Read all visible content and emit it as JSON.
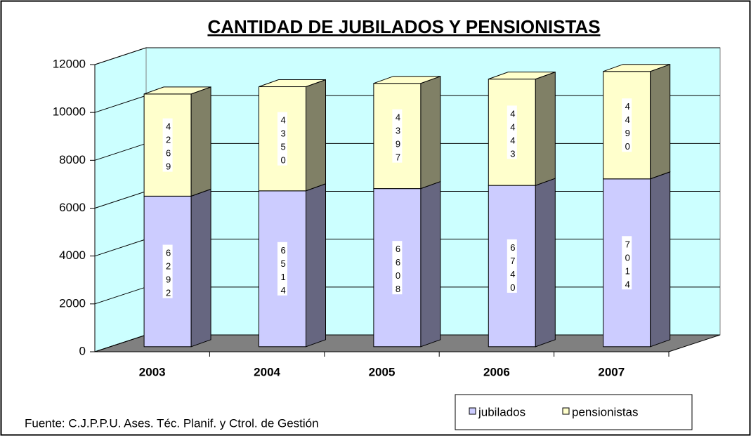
{
  "chart_data": {
    "type": "bar3d_stacked",
    "title": "CANTIDAD DE JUBILADOS Y PENSIONISTAS",
    "categories": [
      "2003",
      "2004",
      "2005",
      "2006",
      "2007"
    ],
    "series": [
      {
        "name": "jubilados",
        "color": "#ccccff",
        "values": [
          6292,
          6514,
          6608,
          6740,
          7014
        ]
      },
      {
        "name": "pensionistas",
        "color": "#ffffcc",
        "values": [
          4269,
          4350,
          4397,
          4443,
          4490
        ]
      }
    ],
    "ylim": [
      0,
      12000
    ],
    "yticks": [
      0,
      2000,
      4000,
      6000,
      8000,
      10000,
      12000
    ],
    "grid": true,
    "legend": "bottom-right",
    "source": "Fuente: C.J.P.P.U. Ases. Téc. Planif. y Ctrol. de Gestión"
  }
}
